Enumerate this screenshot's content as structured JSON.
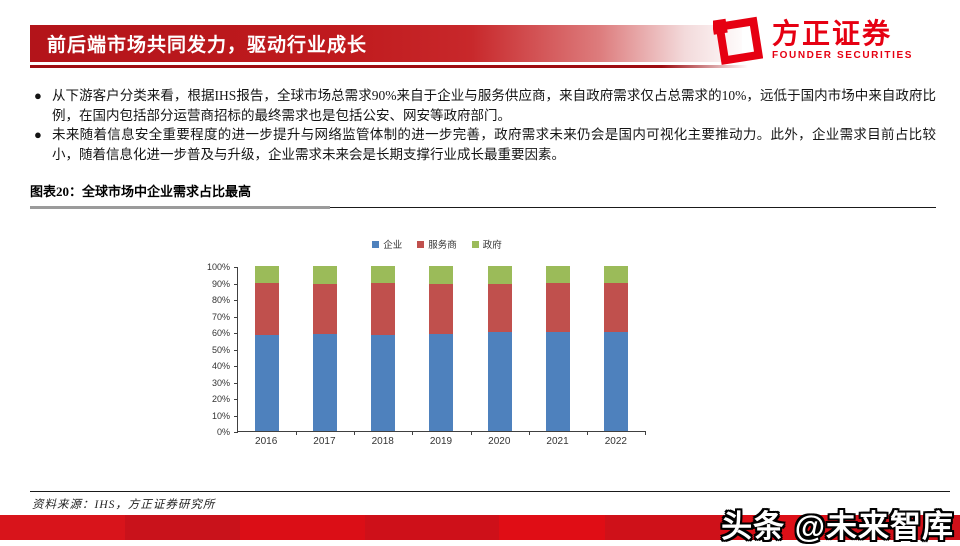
{
  "header": {
    "title": "前后端市场共同发力，驱动行业成长",
    "logo": {
      "name_cn": "方正证券",
      "name_en": "FOUNDER SECURITIES",
      "brand_color": "#e60012"
    }
  },
  "bullets": [
    "从下游客户分类来看，根据IHS报告，全球市场总需求90%来自于企业与服务供应商，来自政府需求仅占总需求的10%，远低于国内市场中来自政府比例，在国内包括部分运营商招标的最终需求也是包括公安、网安等政府部门。",
    "未来随着信息安全重要程度的进一步提升与网络监管体制的进一步完善，政府需求未来仍会是国内可视化主要推动力。此外，企业需求目前占比较小，随着信息化进一步普及与升级，企业需求未来会是长期支撑行业成长最重要因素。"
  ],
  "figure": {
    "caption": "图表20：全球市场中企业需求占比最高",
    "source": "资料来源：IHS，方正证券研究所"
  },
  "chart_data": {
    "type": "bar",
    "stacked": true,
    "title": "全球市场中企业需求占比最高",
    "categories": [
      "2016",
      "2017",
      "2018",
      "2019",
      "2020",
      "2021",
      "2022"
    ],
    "series": [
      {
        "name": "企业",
        "color": "#4E81BD",
        "values": [
          58,
          59,
          58,
          59,
          60,
          60,
          60
        ]
      },
      {
        "name": "服务商",
        "color": "#C0504D",
        "values": [
          32,
          30,
          32,
          30,
          29,
          30,
          30
        ]
      },
      {
        "name": "政府",
        "color": "#9BBB59",
        "values": [
          10,
          11,
          10,
          11,
          11,
          10,
          10
        ]
      }
    ],
    "xlabel": "",
    "ylabel": "",
    "ylim": [
      0,
      100
    ],
    "yticks": [
      "0%",
      "10%",
      "20%",
      "30%",
      "40%",
      "50%",
      "60%",
      "70%",
      "80%",
      "90%",
      "100%"
    ],
    "legend_position": "top",
    "grid": false
  },
  "watermark": "头条 @未来智库"
}
